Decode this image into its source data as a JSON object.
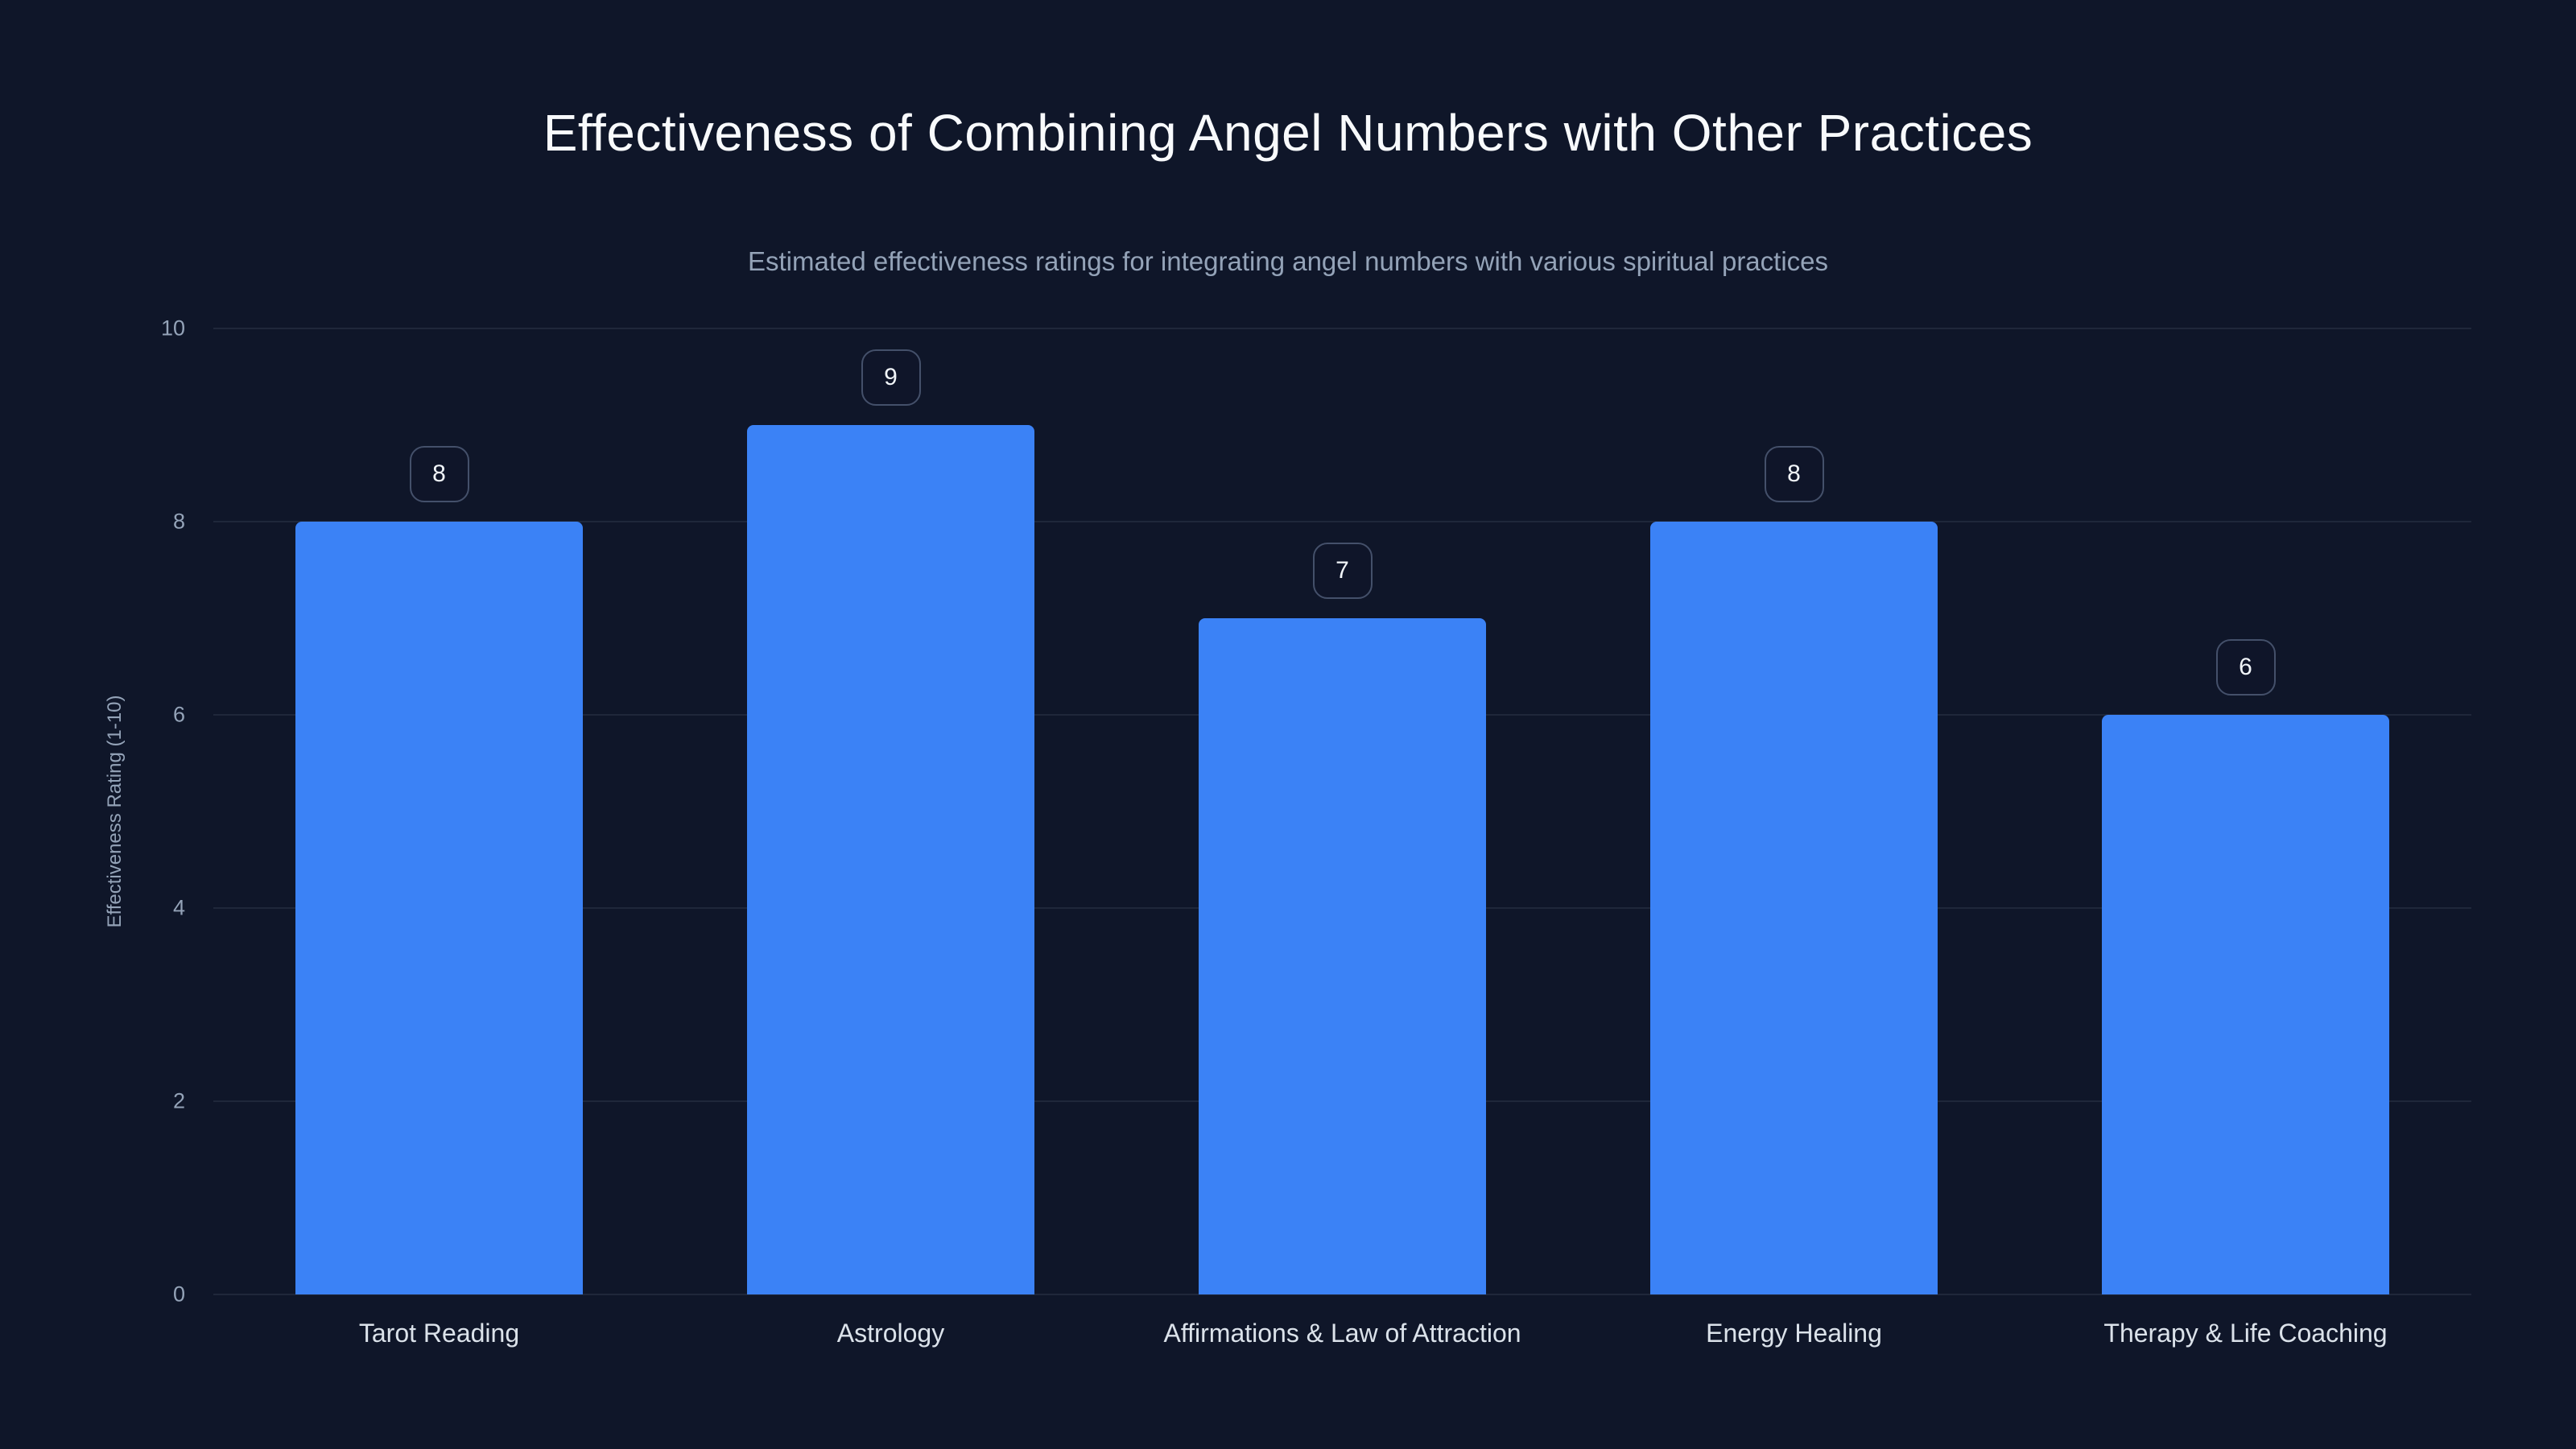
{
  "chart_data": {
    "type": "bar",
    "title": "Effectiveness of Combining Angel Numbers with Other Practices",
    "subtitle": "Estimated effectiveness ratings for integrating angel numbers with various spiritual practices",
    "categories": [
      "Tarot Reading",
      "Astrology",
      "Affirmations & Law of Attraction",
      "Energy Healing",
      "Therapy & Life Coaching"
    ],
    "values": [
      8,
      9,
      7,
      8,
      6
    ],
    "xlabel": "",
    "ylabel": "Effectiveness Rating (1-10)",
    "ylim": [
      0,
      10
    ],
    "yticks": [
      0,
      2,
      4,
      6,
      8,
      10
    ],
    "grid": true,
    "legend": "none",
    "colors": {
      "background": "#0f1629",
      "bar": "#3b82f6",
      "title": "#f8fafc",
      "subtitle": "#94a3b8",
      "axis_text": "#94a3b8",
      "category_text": "#dbe2ea",
      "gridline": "rgba(148,163,184,0.12)",
      "badge_border": "#44506a",
      "badge_text": "#f1f5f9"
    }
  }
}
